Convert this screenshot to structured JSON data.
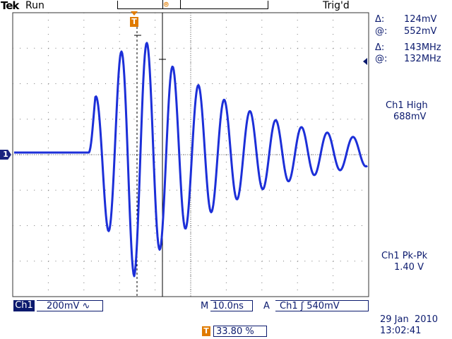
{
  "header": {
    "brand": "Tek",
    "acq_state": "Run",
    "trigger_status": "Trig'd"
  },
  "trigger_marker": "T",
  "channel_marker": "1",
  "readouts": {
    "cursor_delta_v_label": "Δ:",
    "cursor_delta_v": "124mV",
    "cursor_at_v_label": "@:",
    "cursor_at_v": "552mV",
    "cursor_delta_f_label": "Δ:",
    "cursor_delta_f": "143MHz",
    "cursor_at_f_label": "@:",
    "cursor_at_f": "132MHz",
    "ch1_high_label": "Ch1 High",
    "ch1_high_value": "688mV",
    "ch1_pkpk_label": "Ch1 Pk-Pk",
    "ch1_pkpk_value": "1.40 V"
  },
  "footer": {
    "channel": "Ch1",
    "volts_per_div": "200mV",
    "coupling_symbol": "∿",
    "timebase_prefix": "M",
    "timebase": "10.0ns",
    "trigger_mode": "A",
    "trigger_source": "Ch1",
    "trigger_slope": "ʃ",
    "trigger_level": "540mV",
    "date": "29 Jan  2010",
    "time": "13:02:41",
    "trigger_position": "33.80 %"
  },
  "colors": {
    "trace": "#1c2fd8",
    "accent": "#e07b00",
    "text": "#0b1a6e",
    "graticule": "#555555"
  }
}
